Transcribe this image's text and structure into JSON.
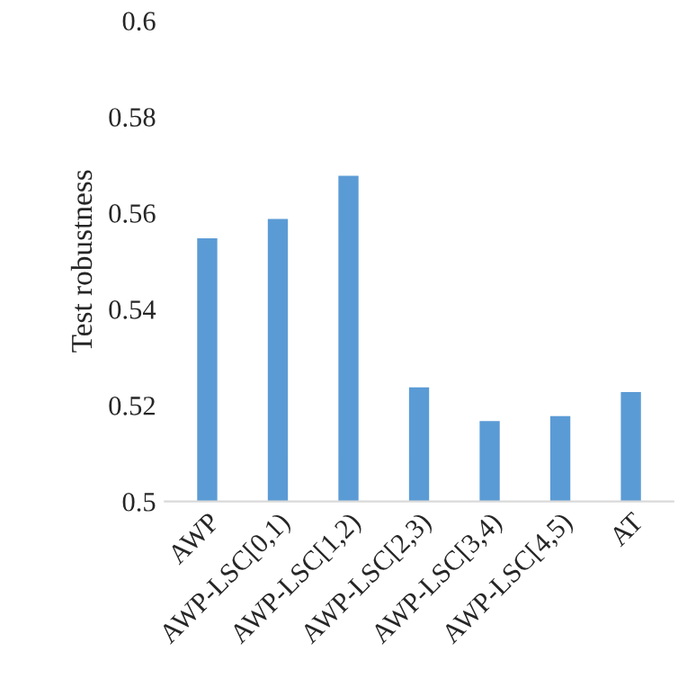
{
  "chart_data": {
    "type": "bar",
    "ylabel": "Test robustness",
    "categories": [
      "AWP",
      "AWP-LSC[0,1)",
      "AWP-LSC[1,2)",
      "AWP-LSC[2,3)",
      "AWP-LSC[3,4)",
      "AWP-LSC[4,5)",
      "AT"
    ],
    "values": [
      0.555,
      0.559,
      0.568,
      0.524,
      0.517,
      0.518,
      0.523
    ],
    "color": "#5b9bd5",
    "ylim": [
      0.5,
      0.6
    ],
    "yticks": [
      0.5,
      0.52,
      0.54,
      0.56,
      0.58,
      0.6
    ],
    "grid": false
  }
}
